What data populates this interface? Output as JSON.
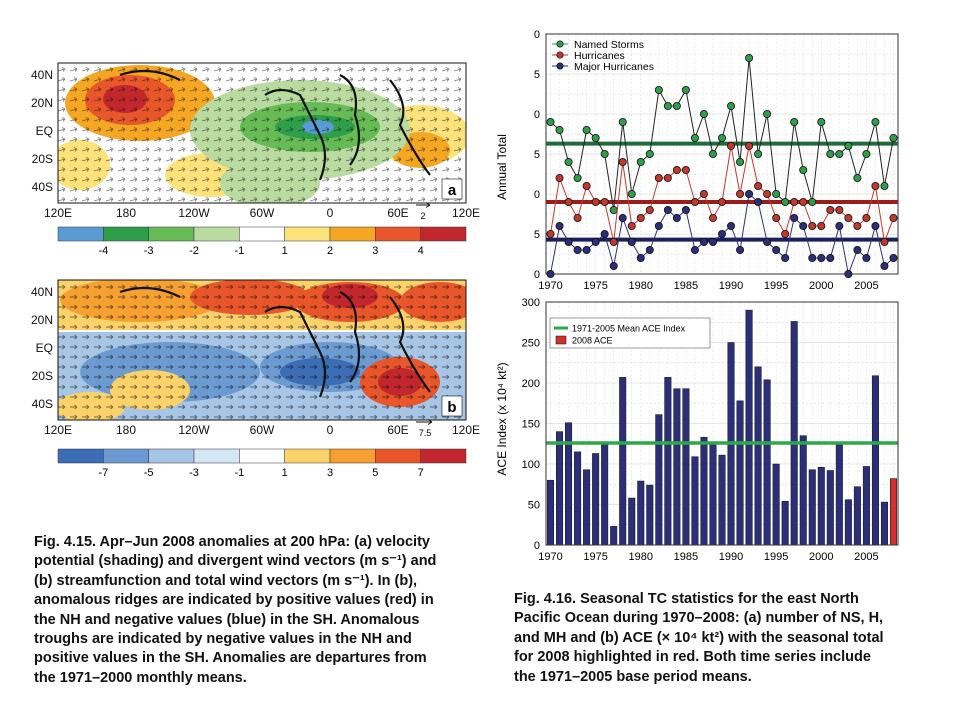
{
  "fig415": {
    "caption": "Fig. 4.15. Apr–Jun 2008 anomalies at 200 hPa: (a) velocity\npotential (shading) and divergent wind vectors (m s⁻¹) and\n(b) streamfunction and total wind vectors (m s⁻¹). In (b),\nanomalous ridges are indicated by positive values (red) in\nthe NH and negative values (blue) in the SH. Anomalous\ntroughs are indicated by negative values in the NH and\npositive values in the SH. Anomalies are departures from\nthe 1971–2000 monthly means.",
    "lat_labels": [
      "40N",
      "20N",
      "EQ",
      "20S",
      "40S"
    ],
    "lon_labels": [
      "120E",
      "180",
      "120W",
      "60W",
      "0",
      "60E",
      "120E"
    ],
    "panel_a": {
      "letter": "a",
      "reference_vector": "2",
      "colorbar_labels": [
        "-4",
        "-3",
        "-2",
        "-1",
        "1",
        "2",
        "3",
        "4"
      ],
      "colorbar_colors": [
        "#5b9bd5",
        "#2e9e4a",
        "#66bb55",
        "#b9dba0",
        "#ffffff",
        "#fbe27a",
        "#f5a623",
        "#e8562a",
        "#c1272d"
      ]
    },
    "panel_b": {
      "letter": "b",
      "reference_vector": "7.5",
      "colorbar_labels": [
        "-7",
        "-5",
        "-3",
        "-1",
        "1",
        "3",
        "5",
        "7"
      ],
      "colorbar_colors": [
        "#3b6eb5",
        "#6c9bd2",
        "#a7c6e6",
        "#d2e6f4",
        "#ffffff",
        "#fbd26a",
        "#f5a030",
        "#e8562a",
        "#c1272d"
      ]
    }
  },
  "fig416": {
    "caption": "Fig. 4.16. Seasonal TC statistics for the east North\nPacific Ocean during 1970–2008: (a) number of NS, H,\nand MH and (b) ACE (× 10⁴ kt²) with the seasonal total\nfor 2008 highlighted in red. Both time series include\nthe 1971–2005 base period means."
  },
  "chart_data": [
    {
      "type": "line",
      "ylabel": "Annual Total",
      "xlabel": "",
      "x": [
        1970,
        1971,
        1972,
        1973,
        1974,
        1975,
        1976,
        1977,
        1978,
        1979,
        1980,
        1981,
        1982,
        1983,
        1984,
        1985,
        1986,
        1987,
        1988,
        1989,
        1990,
        1991,
        1992,
        1993,
        1994,
        1995,
        1996,
        1997,
        1998,
        1999,
        2000,
        2001,
        2002,
        2003,
        2004,
        2005,
        2006,
        2007,
        2008
      ],
      "xticks": [
        "1970",
        "1975",
        "1980",
        "1985",
        "1990",
        "1995",
        "2000",
        "2005"
      ],
      "ylim": [
        0,
        30
      ],
      "yticks": [
        "0",
        "5",
        "0",
        "5",
        "0",
        "5",
        "0"
      ],
      "series": [
        {
          "name": "Named Storms",
          "color": "#2e9e4a",
          "values": [
            19,
            18,
            14,
            12,
            18,
            17,
            15,
            8,
            19,
            10,
            14,
            15,
            23,
            21,
            21,
            23,
            17,
            20,
            15,
            17,
            21,
            14,
            27,
            15,
            20,
            10,
            9,
            19,
            13,
            9,
            19,
            15,
            15,
            16,
            12,
            15,
            19,
            11,
            17
          ]
        },
        {
          "name": "Hurricanes",
          "color": "#c0392b",
          "values": [
            5,
            12,
            9,
            7,
            11,
            9,
            9,
            4,
            14,
            6,
            7,
            8,
            12,
            12,
            13,
            13,
            9,
            10,
            7,
            9,
            16,
            10,
            16,
            11,
            10,
            7,
            5,
            9,
            9,
            6,
            6,
            8,
            8,
            7,
            6,
            7,
            11,
            4,
            7
          ]
        },
        {
          "name": "Major Hurricanes",
          "color": "#2b2f7a",
          "values": [
            0,
            6,
            4,
            3,
            3,
            4,
            5,
            1,
            7,
            4,
            2,
            3,
            6,
            8,
            7,
            8,
            3,
            4,
            4,
            5,
            6,
            3,
            10,
            9,
            4,
            3,
            2,
            7,
            6,
            2,
            2,
            2,
            6,
            0,
            3,
            2,
            6,
            1,
            2
          ]
        }
      ],
      "means": [
        {
          "value": 16.3,
          "color": "#1f6b3a"
        },
        {
          "value": 9.0,
          "color": "#9b1c1c"
        },
        {
          "value": 4.3,
          "color": "#1c1f5e"
        }
      ]
    },
    {
      "type": "bar",
      "ylabel": "ACE Index (x 10⁴ kt²)",
      "xlabel": "",
      "x": [
        1970,
        1971,
        1972,
        1973,
        1974,
        1975,
        1976,
        1977,
        1978,
        1979,
        1980,
        1981,
        1982,
        1983,
        1984,
        1985,
        1986,
        1987,
        1988,
        1989,
        1990,
        1991,
        1992,
        1993,
        1994,
        1995,
        1996,
        1997,
        1998,
        1999,
        2000,
        2001,
        2002,
        2003,
        2004,
        2005,
        2006,
        2007,
        2008
      ],
      "xticks": [
        "1970",
        "1975",
        "1980",
        "1985",
        "1990",
        "1995",
        "2000",
        "2005"
      ],
      "values": [
        80,
        140,
        151,
        115,
        93,
        113,
        124,
        23,
        207,
        58,
        79,
        74,
        161,
        207,
        193,
        193,
        109,
        133,
        126,
        111,
        250,
        178,
        290,
        220,
        204,
        100,
        54,
        276,
        135,
        93,
        96,
        92,
        127,
        56,
        72,
        97,
        209,
        53,
        82
      ],
      "highlight_index": 38,
      "bar_color": "#2b2f7a",
      "highlight_color": "#d32f2f",
      "ylim": [
        0,
        300
      ],
      "yticks": [
        "0",
        "50",
        "100",
        "150",
        "200",
        "250",
        "300"
      ],
      "mean": 126,
      "mean_color": "#2ca84a",
      "legend": [
        {
          "label": "1971-2005 Mean ACE Index",
          "color": "#2ca84a",
          "kind": "line"
        },
        {
          "label": "2008 ACE",
          "color": "#d32f2f",
          "kind": "box"
        }
      ]
    }
  ]
}
